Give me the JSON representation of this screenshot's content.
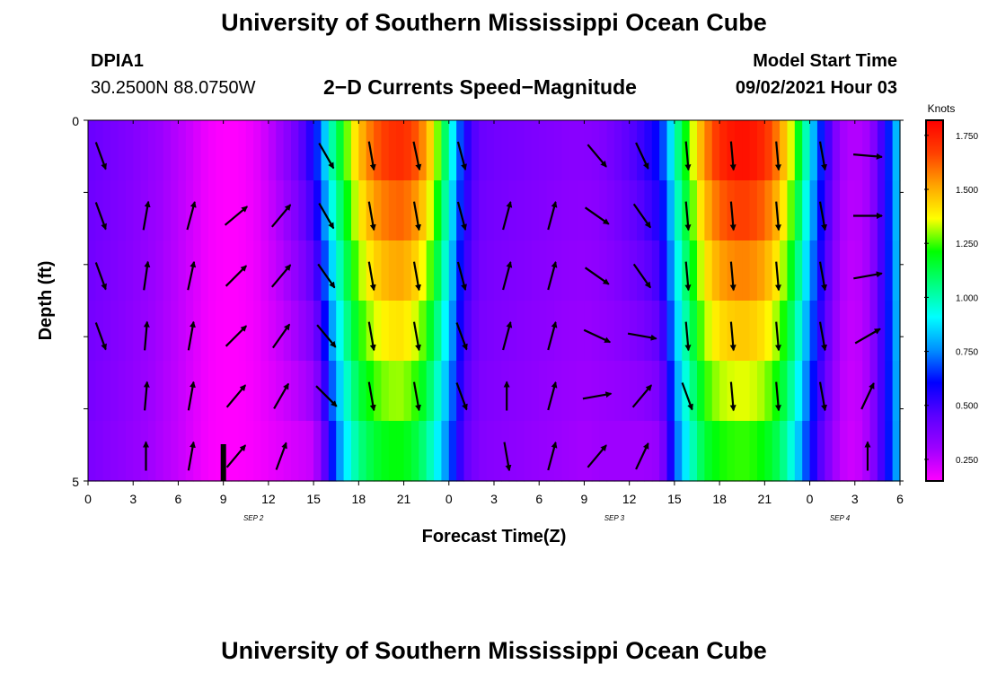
{
  "header": {
    "title": "University of Southern Mississippi Ocean Cube",
    "station_id": "DPIA1",
    "station_coords": "30.2500N  88.0750W",
    "chart_title": "2−D Currents Speed−Magnitude",
    "model_label": "Model Start Time",
    "model_time": "09/02/2021 Hour 03"
  },
  "footer": {
    "title": "University of Southern Mississippi Ocean Cube"
  },
  "colors": {
    "speed_scale": [
      "#ff00ff",
      "#9d00ff",
      "#5a00ff",
      "#0000ff",
      "#0090ff",
      "#00ffff",
      "#00ff80",
      "#00ff00",
      "#ffff00",
      "#ffa500",
      "#ff4000",
      "#ff0000"
    ],
    "vector": "#000000",
    "current_time_marker": "#000000"
  },
  "chart_data": {
    "type": "heatmap",
    "xlabel": "Forecast Time(Z)",
    "ylabel": "Depth (ft)",
    "x_ticks": [
      "0",
      "3",
      "6",
      "9",
      "12",
      "15",
      "18",
      "21",
      "0",
      "3",
      "6",
      "9",
      "12",
      "15",
      "18",
      "21",
      "0",
      "3",
      "6"
    ],
    "date_labels": [
      {
        "label": "SEP 2",
        "at_hour": 11
      },
      {
        "label": "SEP 3",
        "at_hour": 35
      },
      {
        "label": "SEP 4",
        "at_hour": 50
      }
    ],
    "xlim_hours": [
      0,
      54
    ],
    "y_ticks": [
      "0",
      "5"
    ],
    "ylim_ft": [
      0,
      5
    ],
    "depth_layers": 6,
    "current_time_marker_hour": 9,
    "colorbar": {
      "title": "Knots",
      "ticks": [
        "1.750",
        "1.500",
        "1.250",
        "1.000",
        "0.750",
        "0.500",
        "0.250"
      ],
      "tick_values": [
        1.75,
        1.5,
        1.25,
        1.0,
        0.75,
        0.5,
        0.25
      ],
      "range": [
        0.15,
        1.82
      ]
    },
    "speed_knots_by_hour": {
      "hours": [
        0,
        1,
        2,
        3,
        4,
        5,
        6,
        7,
        8,
        9,
        10,
        11,
        12,
        13,
        14,
        15,
        15.5,
        16,
        17,
        18,
        19,
        20,
        21,
        22,
        23,
        24,
        25,
        26,
        27,
        28,
        29,
        30,
        31,
        32,
        33,
        34,
        35,
        36,
        37,
        38,
        38.5,
        39,
        40,
        41,
        42,
        43,
        44,
        45,
        46,
        47,
        48,
        49,
        50,
        51,
        52,
        53,
        54
      ],
      "surface": [
        0.42,
        0.4,
        0.38,
        0.36,
        0.33,
        0.3,
        0.26,
        0.22,
        0.17,
        0.15,
        0.15,
        0.18,
        0.24,
        0.32,
        0.42,
        0.58,
        0.72,
        0.95,
        1.22,
        1.46,
        1.62,
        1.7,
        1.72,
        1.62,
        1.38,
        1.0,
        0.58,
        0.42,
        0.4,
        0.39,
        0.38,
        0.37,
        0.36,
        0.35,
        0.35,
        0.36,
        0.4,
        0.45,
        0.52,
        0.62,
        0.75,
        0.98,
        1.28,
        1.55,
        1.72,
        1.78,
        1.78,
        1.72,
        1.55,
        1.28,
        0.9,
        0.55,
        0.3,
        0.26,
        0.3,
        0.55,
        0.9
      ],
      "bottom": [
        0.38,
        0.36,
        0.34,
        0.32,
        0.3,
        0.27,
        0.24,
        0.2,
        0.16,
        0.15,
        0.15,
        0.16,
        0.18,
        0.2,
        0.22,
        0.24,
        0.35,
        0.55,
        0.85,
        1.05,
        1.15,
        1.2,
        1.2,
        1.12,
        0.95,
        0.72,
        0.45,
        0.36,
        0.35,
        0.34,
        0.33,
        0.32,
        0.31,
        0.3,
        0.29,
        0.3,
        0.3,
        0.3,
        0.3,
        0.32,
        0.45,
        0.68,
        0.95,
        1.15,
        1.22,
        1.24,
        1.24,
        1.2,
        1.1,
        0.9,
        0.62,
        0.4,
        0.25,
        0.22,
        0.3,
        0.55,
        0.85
      ]
    },
    "vectors": {
      "hours": [
        0,
        3,
        6,
        9,
        12,
        15,
        18,
        21,
        24,
        27,
        30,
        33,
        36,
        39,
        42,
        45,
        48,
        51
      ],
      "rows": [
        {
          "depth_row": 0,
          "directions_deg": [
            160,
            null,
            null,
            null,
            null,
            150,
            170,
            168,
            165,
            null,
            null,
            140,
            155,
            175,
            175,
            175,
            170,
            95
          ]
        },
        {
          "depth_row": 1,
          "directions_deg": [
            160,
            10,
            15,
            50,
            40,
            150,
            170,
            170,
            165,
            15,
            15,
            125,
            145,
            175,
            175,
            175,
            170,
            90
          ]
        },
        {
          "depth_row": 2,
          "directions_deg": [
            160,
            8,
            12,
            45,
            40,
            145,
            170,
            170,
            165,
            15,
            15,
            125,
            145,
            175,
            175,
            175,
            170,
            80
          ]
        },
        {
          "depth_row": 3,
          "directions_deg": [
            160,
            5,
            10,
            45,
            35,
            140,
            170,
            170,
            160,
            15,
            15,
            115,
            100,
            175,
            175,
            175,
            170,
            60
          ]
        },
        {
          "depth_row": 4,
          "directions_deg": [
            null,
            5,
            10,
            40,
            30,
            135,
            170,
            170,
            160,
            0,
            15,
            80,
            40,
            160,
            175,
            175,
            170,
            25
          ]
        },
        {
          "depth_row": 5,
          "directions_deg": [
            null,
            0,
            10,
            40,
            20,
            null,
            null,
            null,
            null,
            170,
            15,
            40,
            25,
            null,
            null,
            null,
            null,
            0
          ]
        }
      ]
    }
  }
}
